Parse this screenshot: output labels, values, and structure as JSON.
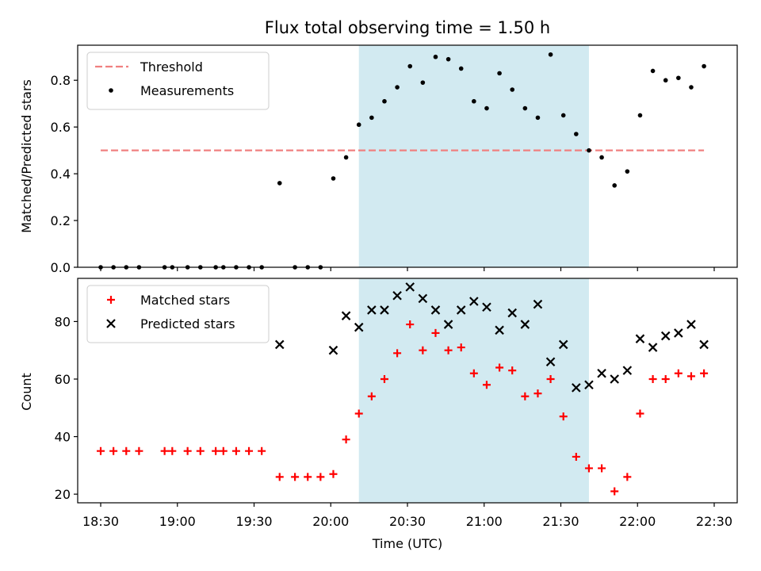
{
  "chart_data": {
    "title": "Flux total observing time = 1.50 h",
    "xlabel": "Time (UTC)",
    "x_ticks": [
      "18:30",
      "19:00",
      "19:30",
      "20:00",
      "20:30",
      "21:00",
      "21:30",
      "22:00",
      "22:30"
    ],
    "x_range": [
      "18:21",
      "22:39"
    ],
    "shaded_span": {
      "start": "20:11",
      "end": "21:41",
      "color": "#add8e6"
    },
    "panels": [
      {
        "type": "scatter",
        "ylabel": "Matched/Predicted stars",
        "ylim": [
          0,
          0.95
        ],
        "yticks": [
          "0.0",
          "0.2",
          "0.4",
          "0.6",
          "0.8"
        ],
        "legend": "top-left",
        "threshold": {
          "name": "Threshold",
          "value": 0.5,
          "x_start": "18:30",
          "x_end": "22:26",
          "color": "#f08080"
        },
        "series": [
          {
            "name": "Measurements",
            "marker": "dot",
            "color": "#000000",
            "x": [
              "18:30",
              "18:35",
              "18:40",
              "18:45",
              "18:55",
              "18:58",
              "19:04",
              "19:09",
              "19:15",
              "19:18",
              "19:23",
              "19:28",
              "19:33",
              "19:40",
              "19:46",
              "19:51",
              "19:56",
              "20:01",
              "20:06",
              "20:11",
              "20:16",
              "20:21",
              "20:26",
              "20:31",
              "20:36",
              "20:41",
              "20:46",
              "20:51",
              "20:56",
              "21:01",
              "21:06",
              "21:11",
              "21:16",
              "21:21",
              "21:26",
              "21:31",
              "21:36",
              "21:41",
              "21:46",
              "21:51",
              "21:56",
              "22:01",
              "22:06",
              "22:11",
              "22:16",
              "22:21",
              "22:26"
            ],
            "y": [
              0,
              0,
              0,
              0,
              0,
              0,
              0,
              0,
              0,
              0,
              0,
              0,
              0,
              0.36,
              0,
              0,
              0,
              0.38,
              0.47,
              0.61,
              0.64,
              0.71,
              0.77,
              0.86,
              0.79,
              0.9,
              0.89,
              0.85,
              0.71,
              0.68,
              0.83,
              0.76,
              0.68,
              0.64,
              0.91,
              0.65,
              0.57,
              0.5,
              0.47,
              0.35,
              0.41,
              0.65,
              0.84,
              0.8,
              0.81,
              0.77,
              0.86
            ]
          }
        ]
      },
      {
        "type": "scatter",
        "ylabel": "Count",
        "ylim": [
          17,
          95
        ],
        "yticks": [
          "20",
          "40",
          "60",
          "80"
        ],
        "legend": "top-left",
        "series": [
          {
            "name": "Matched stars",
            "marker": "plus",
            "color": "#ff0000",
            "x": [
              "18:30",
              "18:35",
              "18:40",
              "18:45",
              "18:55",
              "18:58",
              "19:04",
              "19:09",
              "19:15",
              "19:18",
              "19:23",
              "19:28",
              "19:33",
              "19:40",
              "19:46",
              "19:51",
              "19:56",
              "20:01",
              "20:06",
              "20:11",
              "20:16",
              "20:21",
              "20:26",
              "20:31",
              "20:36",
              "20:41",
              "20:46",
              "20:51",
              "20:56",
              "21:01",
              "21:06",
              "21:11",
              "21:16",
              "21:21",
              "21:26",
              "21:31",
              "21:36",
              "21:41",
              "21:46",
              "21:51",
              "21:56",
              "22:01",
              "22:06",
              "22:11",
              "22:16",
              "22:21",
              "22:26"
            ],
            "y": [
              35,
              35,
              35,
              35,
              35,
              35,
              35,
              35,
              35,
              35,
              35,
              35,
              35,
              26,
              26,
              26,
              26,
              27,
              39,
              48,
              54,
              60,
              69,
              79,
              70,
              76,
              70,
              71,
              62,
              58,
              64,
              63,
              54,
              55,
              60,
              47,
              33,
              29,
              29,
              21,
              26,
              48,
              60,
              60,
              62,
              61,
              62
            ]
          },
          {
            "name": "Predicted stars",
            "marker": "x",
            "color": "#000000",
            "x": [
              "19:40",
              "20:01",
              "20:06",
              "20:11",
              "20:16",
              "20:21",
              "20:26",
              "20:31",
              "20:36",
              "20:41",
              "20:46",
              "20:51",
              "20:56",
              "21:01",
              "21:06",
              "21:11",
              "21:16",
              "21:21",
              "21:26",
              "21:31",
              "21:36",
              "21:41",
              "21:46",
              "21:51",
              "21:56",
              "22:01",
              "22:06",
              "22:11",
              "22:16",
              "22:21",
              "22:26"
            ],
            "y": [
              72,
              70,
              82,
              78,
              84,
              84,
              89,
              92,
              88,
              84,
              79,
              84,
              87,
              85,
              77,
              83,
              79,
              86,
              66,
              72,
              57,
              58,
              62,
              60,
              63,
              74,
              71,
              75,
              76,
              79,
              72
            ]
          }
        ]
      }
    ]
  }
}
